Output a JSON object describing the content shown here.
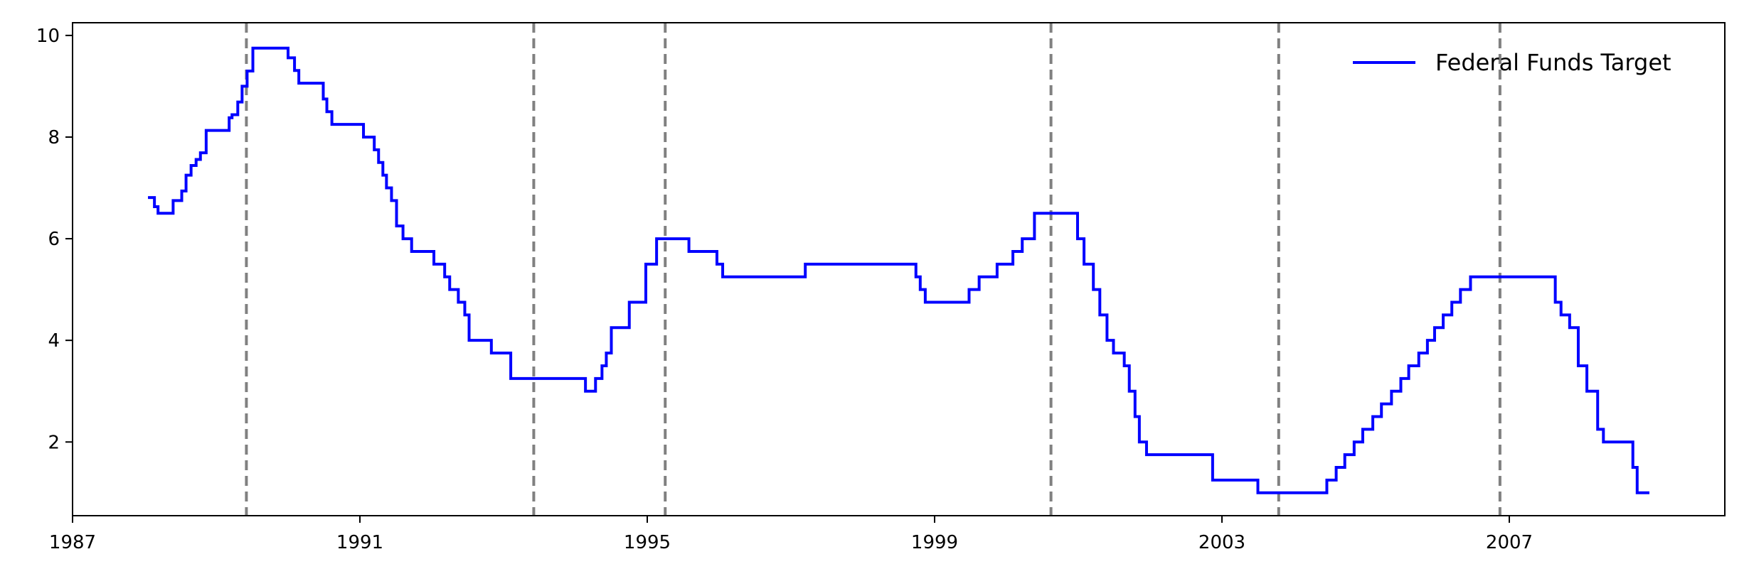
{
  "chart_data": {
    "type": "line",
    "title": "",
    "xlabel": "",
    "ylabel": "",
    "xlim": [
      1987.0,
      2010.0
    ],
    "ylim": [
      0.55,
      10.25
    ],
    "x_ticks": [
      1987,
      1991,
      1995,
      1999,
      2003,
      2007
    ],
    "x_tick_labels": [
      "1987",
      "1991",
      "1995",
      "1999",
      "2003",
      "2007"
    ],
    "y_ticks": [
      2,
      4,
      6,
      8,
      10
    ],
    "y_tick_labels": [
      "2",
      "4",
      "6",
      "8",
      "10"
    ],
    "grid": false,
    "legend": {
      "position": "top-right"
    },
    "series": [
      {
        "name": "Federal Funds Target",
        "color": "#0000ff",
        "step": true,
        "x": [
          1988.05,
          1988.14,
          1988.19,
          1988.24,
          1988.4,
          1988.52,
          1988.58,
          1988.65,
          1988.72,
          1988.78,
          1988.86,
          1989.18,
          1989.22,
          1989.3,
          1989.36,
          1989.43,
          1989.51,
          1989.55,
          1990.0,
          1990.09,
          1990.15,
          1990.2,
          1990.49,
          1990.54,
          1990.61,
          1990.74,
          1991.05,
          1991.2,
          1991.26,
          1991.32,
          1991.37,
          1991.44,
          1991.51,
          1991.6,
          1991.72,
          1992.03,
          1992.18,
          1992.25,
          1992.37,
          1992.46,
          1992.52,
          1992.83,
          1993.1,
          1994.14,
          1994.28,
          1994.37,
          1994.43,
          1994.5,
          1994.75,
          1994.98,
          1995.13,
          1995.58,
          1995.97,
          1996.05,
          1997.2,
          1998.74,
          1998.8,
          1998.87,
          1999.48,
          1999.62,
          1999.87,
          2000.09,
          2000.22,
          2000.39,
          2000.99,
          2001.08,
          2001.21,
          2001.3,
          2001.4,
          2001.49,
          2001.64,
          2001.71,
          2001.79,
          2001.85,
          2001.95,
          2002.87,
          2003.5,
          2004.46,
          2004.59,
          2004.71,
          2004.84,
          2004.96,
          2005.1,
          2005.22,
          2005.36,
          2005.49,
          2005.6,
          2005.74,
          2005.86,
          2005.96,
          2006.08,
          2006.2,
          2006.32,
          2006.46,
          2007.64,
          2007.72,
          2007.84,
          2007.96,
          2008.06,
          2008.08,
          2008.23,
          2008.31,
          2008.72,
          2008.78,
          2008.95
        ],
        "y": [
          6.81,
          6.63,
          6.5,
          6.5,
          6.75,
          6.94,
          7.25,
          7.44,
          7.56,
          7.69,
          8.13,
          8.38,
          8.44,
          8.69,
          9.0,
          9.3,
          9.75,
          9.75,
          9.56,
          9.31,
          9.06,
          9.06,
          8.75,
          8.5,
          8.25,
          8.25,
          8.0,
          7.75,
          7.5,
          7.25,
          7.0,
          6.75,
          6.25,
          6.0,
          5.75,
          5.5,
          5.25,
          5.0,
          4.75,
          4.5,
          4.0,
          3.75,
          3.25,
          3.0,
          3.25,
          3.5,
          3.75,
          4.25,
          4.75,
          5.5,
          6.0,
          5.75,
          5.5,
          5.25,
          5.5,
          5.25,
          5.0,
          4.75,
          5.0,
          5.25,
          5.5,
          5.75,
          6.0,
          6.5,
          6.0,
          5.5,
          5.0,
          4.5,
          4.0,
          3.75,
          3.5,
          3.0,
          2.5,
          2.0,
          1.75,
          1.25,
          1.0,
          1.25,
          1.5,
          1.75,
          2.0,
          2.25,
          2.5,
          2.75,
          3.0,
          3.25,
          3.5,
          3.75,
          4.0,
          4.25,
          4.5,
          4.75,
          5.0,
          5.25,
          4.75,
          4.5,
          4.25,
          3.5,
          3.5,
          3.0,
          2.25,
          2.0,
          1.5,
          1.0,
          1.0
        ],
        "x_end": 2008.95
      }
    ],
    "reference_lines": {
      "orientation": "vertical",
      "style": "dashed",
      "color": "#808080",
      "x": [
        1989.42,
        1993.42,
        1995.25,
        2000.62,
        2003.79,
        2006.87
      ]
    }
  }
}
